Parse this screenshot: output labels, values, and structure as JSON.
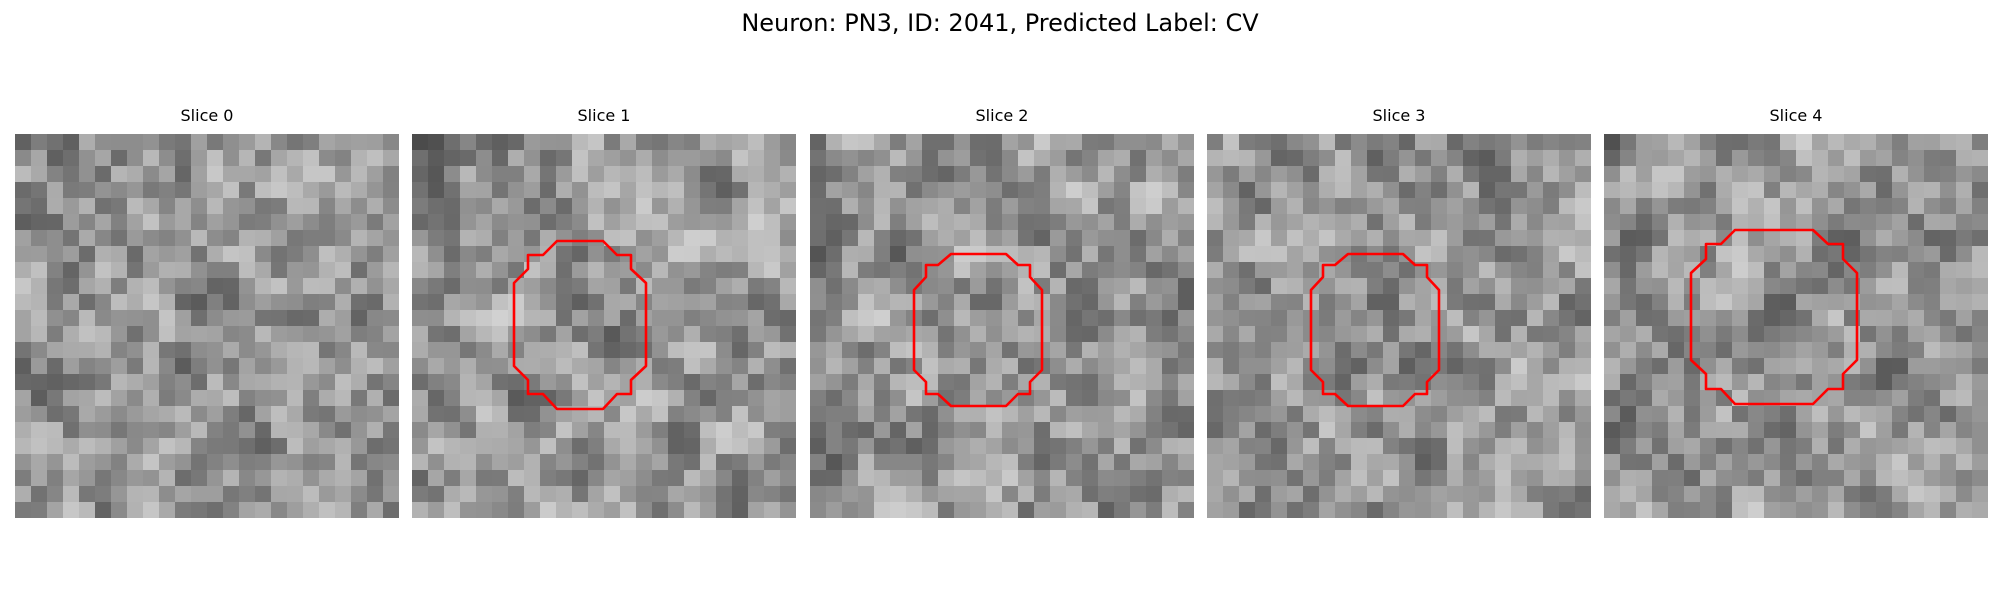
{
  "figure": {
    "title": "Neuron: PN3, ID: 2041, Predicted Label: CV"
  },
  "colormap": "gray",
  "contour_color": "#ff0000",
  "slices": [
    {
      "title": "Slice 0",
      "has_contour": false
    },
    {
      "title": "Slice 1",
      "has_contour": true
    },
    {
      "title": "Slice 2",
      "has_contour": true
    },
    {
      "title": "Slice 3",
      "has_contour": true
    },
    {
      "title": "Slice 4",
      "has_contour": true
    }
  ]
}
